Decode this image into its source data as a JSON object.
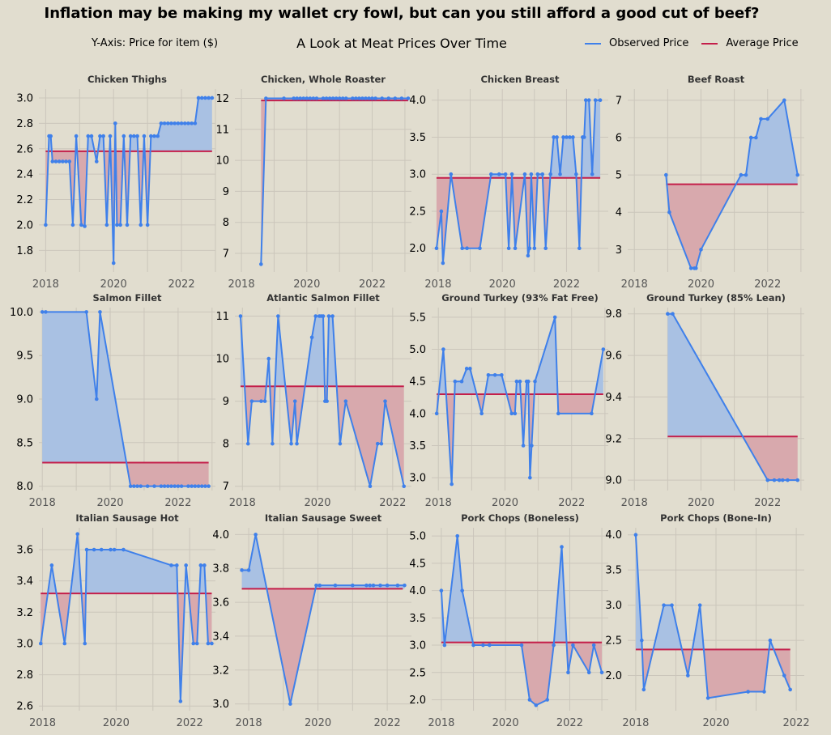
{
  "header": {
    "title": "Inflation may be making my wallet cry fowl, but can you still afford a good cut of beef?",
    "subtitle": "A Look at Meat Prices Over Time",
    "y_axis_note": "Y-Axis: Price for item ($)"
  },
  "legend": {
    "observed": "Observed Price",
    "average": "Average Price"
  },
  "colors": {
    "background": "#e1ddcf",
    "observed_line": "#3f80ea",
    "average_line": "#c41e4a",
    "fill_above": "#a9c1e3",
    "fill_below": "#d8a9ad",
    "grid": "#cbc6bb"
  },
  "chart_data": [
    {
      "type": "line",
      "title": "Chicken Thighs",
      "xlim": [
        2017.8,
        2023.0
      ],
      "ylim": [
        1.63,
        3.07
      ],
      "xticks": [
        2018,
        2020,
        2022
      ],
      "yticks": [
        1.8,
        2.0,
        2.2,
        2.4,
        2.6,
        2.8,
        3.0
      ],
      "average": 2.58,
      "x": [
        2018.0,
        2018.1,
        2018.15,
        2018.2,
        2018.3,
        2018.4,
        2018.5,
        2018.6,
        2018.7,
        2018.8,
        2018.9,
        2019.05,
        2019.15,
        2019.25,
        2019.35,
        2019.5,
        2019.6,
        2019.7,
        2019.8,
        2019.9,
        2020.0,
        2020.05,
        2020.1,
        2020.2,
        2020.3,
        2020.4,
        2020.5,
        2020.6,
        2020.7,
        2020.8,
        2020.9,
        2021.0,
        2021.1,
        2021.2,
        2021.3,
        2021.4,
        2021.5,
        2021.6,
        2021.7,
        2021.8,
        2021.9,
        2022.0,
        2022.1,
        2022.2,
        2022.3,
        2022.4,
        2022.5,
        2022.6,
        2022.7,
        2022.8,
        2022.9
      ],
      "y": [
        2.0,
        2.7,
        2.7,
        2.5,
        2.5,
        2.5,
        2.5,
        2.5,
        2.5,
        2.0,
        2.7,
        2.0,
        1.99,
        2.7,
        2.7,
        2.5,
        2.7,
        2.7,
        2.0,
        2.7,
        1.7,
        2.8,
        2.0,
        2.0,
        2.7,
        2.0,
        2.7,
        2.7,
        2.7,
        2.0,
        2.7,
        2.0,
        2.7,
        2.7,
        2.7,
        2.8,
        2.8,
        2.8,
        2.8,
        2.8,
        2.8,
        2.8,
        2.8,
        2.8,
        2.8,
        2.8,
        3.0,
        3.0,
        3.0,
        3.0,
        3.0
      ]
    },
    {
      "type": "line",
      "title": "Chicken, Whole Roaster",
      "xlim": [
        2017.8,
        2023.2
      ],
      "ylim": [
        6.4,
        12.3
      ],
      "xticks": [
        2018,
        2020,
        2022
      ],
      "yticks": [
        7,
        8,
        9,
        10,
        11,
        12
      ],
      "average": 11.93,
      "x": [
        2018.6,
        2018.75,
        2019.3,
        2019.6,
        2019.7,
        2019.8,
        2019.9,
        2020.0,
        2020.1,
        2020.2,
        2020.3,
        2020.5,
        2020.6,
        2020.7,
        2020.8,
        2020.9,
        2021.0,
        2021.1,
        2021.2,
        2021.4,
        2021.5,
        2021.6,
        2021.7,
        2021.8,
        2021.9,
        2022.0,
        2022.1,
        2022.3,
        2022.5,
        2022.7,
        2022.9,
        2023.1
      ],
      "y": [
        6.65,
        12.0,
        12.0,
        12.0,
        12.0,
        12.0,
        12.0,
        12.0,
        12.0,
        12.0,
        12.0,
        12.0,
        12.0,
        12.0,
        12.0,
        12.0,
        12.0,
        12.0,
        12.0,
        12.0,
        12.0,
        12.0,
        12.0,
        12.0,
        12.0,
        12.0,
        12.0,
        12.0,
        12.0,
        12.0,
        12.0,
        12.0
      ]
    },
    {
      "type": "line",
      "title": "Chicken Breast",
      "xlim": [
        2017.8,
        2023.3
      ],
      "ylim": [
        1.68,
        4.15
      ],
      "xticks": [
        2018,
        2020,
        2022
      ],
      "yticks": [
        2.0,
        2.5,
        3.0,
        3.5,
        4.0
      ],
      "average": 2.95,
      "x": [
        2017.95,
        2018.1,
        2018.15,
        2018.4,
        2018.75,
        2018.9,
        2019.3,
        2019.65,
        2019.9,
        2020.1,
        2020.2,
        2020.3,
        2020.4,
        2020.7,
        2020.8,
        2020.85,
        2020.9,
        2021.0,
        2021.1,
        2021.25,
        2021.35,
        2021.5,
        2021.6,
        2021.7,
        2021.8,
        2021.9,
        2022.0,
        2022.1,
        2022.2,
        2022.3,
        2022.4,
        2022.5,
        2022.55,
        2022.6,
        2022.7,
        2022.8,
        2022.9,
        2023.05
      ],
      "y": [
        2.0,
        2.5,
        1.8,
        3.0,
        2.0,
        2.0,
        2.0,
        3.0,
        3.0,
        3.0,
        2.0,
        3.0,
        2.0,
        3.0,
        1.9,
        2.0,
        3.0,
        2.0,
        3.0,
        3.0,
        2.0,
        3.0,
        3.5,
        3.5,
        3.0,
        3.5,
        3.5,
        3.5,
        3.5,
        3.0,
        2.0,
        3.5,
        3.5,
        4.0,
        4.0,
        3.0,
        4.0,
        4.0
      ]
    },
    {
      "type": "line",
      "title": "Beef Roast",
      "xlim": [
        2017.8,
        2023.1
      ],
      "ylim": [
        2.4,
        7.3
      ],
      "xticks": [
        2018,
        2020,
        2022
      ],
      "yticks": [
        3,
        4,
        5,
        6,
        7
      ],
      "average": 4.75,
      "x": [
        2018.95,
        2019.05,
        2019.7,
        2019.8,
        2019.85,
        2020.0,
        2021.2,
        2021.35,
        2021.5,
        2021.65,
        2021.8,
        2022.0,
        2022.5,
        2022.9
      ],
      "y": [
        5.0,
        4.0,
        2.5,
        2.5,
        2.5,
        3.0,
        5.0,
        5.0,
        6.0,
        6.0,
        6.5,
        6.5,
        7.0,
        5.0
      ]
    },
    {
      "type": "line",
      "title": "Salmon Fillet",
      "xlim": [
        2017.9,
        2023.1
      ],
      "ylim": [
        7.95,
        10.05
      ],
      "xticks": [
        2018,
        2020,
        2022
      ],
      "yticks": [
        8.0,
        8.5,
        9.0,
        9.5,
        10.0
      ],
      "average": 8.27,
      "x": [
        2018.0,
        2018.1,
        2019.3,
        2019.6,
        2019.7,
        2020.6,
        2020.7,
        2020.8,
        2020.9,
        2021.1,
        2021.3,
        2021.5,
        2021.6,
        2021.7,
        2021.8,
        2021.9,
        2022.0,
        2022.1,
        2022.3,
        2022.4,
        2022.5,
        2022.6,
        2022.7,
        2022.8,
        2022.9
      ],
      "y": [
        10.0,
        10.0,
        10.0,
        9.0,
        10.0,
        8.0,
        8.0,
        8.0,
        8.0,
        8.0,
        8.0,
        8.0,
        8.0,
        8.0,
        8.0,
        8.0,
        8.0,
        8.0,
        8.0,
        8.0,
        8.0,
        8.0,
        8.0,
        8.0,
        8.0
      ]
    },
    {
      "type": "line",
      "title": "Atlantic Salmon Fillet",
      "xlim": [
        2017.8,
        2022.5
      ],
      "ylim": [
        6.9,
        11.2
      ],
      "xticks": [
        2018,
        2020,
        2022
      ],
      "yticks": [
        7,
        8,
        9,
        10,
        11
      ],
      "average": 9.35,
      "x": [
        2017.95,
        2018.15,
        2018.25,
        2018.5,
        2018.6,
        2018.7,
        2018.8,
        2018.95,
        2019.3,
        2019.4,
        2019.45,
        2019.85,
        2019.95,
        2020.05,
        2020.1,
        2020.15,
        2020.2,
        2020.25,
        2020.3,
        2020.4,
        2020.6,
        2020.75,
        2021.4,
        2021.6,
        2021.7,
        2021.8,
        2022.3
      ],
      "y": [
        11.0,
        8.0,
        9.0,
        9.0,
        9.0,
        10.0,
        8.0,
        11.0,
        8.0,
        9.0,
        8.0,
        10.5,
        11.0,
        11.0,
        11.0,
        11.0,
        9.0,
        9.0,
        11.0,
        11.0,
        8.0,
        9.0,
        7.0,
        8.0,
        8.0,
        9.0,
        7.0
      ]
    },
    {
      "type": "line",
      "title": "Ground Turkey (93% Fat Free)",
      "xlim": [
        2017.8,
        2023.1
      ],
      "ylim": [
        2.8,
        5.65
      ],
      "xticks": [
        2018,
        2020,
        2022
      ],
      "yticks": [
        3.0,
        3.5,
        4.0,
        4.5,
        5.0,
        5.5
      ],
      "average": 4.3,
      "x": [
        2017.95,
        2018.15,
        2018.4,
        2018.5,
        2018.7,
        2018.85,
        2018.95,
        2019.3,
        2019.5,
        2019.7,
        2019.9,
        2020.2,
        2020.3,
        2020.35,
        2020.45,
        2020.55,
        2020.65,
        2020.7,
        2020.75,
        2020.8,
        2020.9,
        2021.5,
        2021.6,
        2022.6,
        2022.95
      ],
      "y": [
        4.0,
        5.0,
        2.9,
        4.5,
        4.5,
        4.7,
        4.7,
        4.0,
        4.6,
        4.6,
        4.6,
        4.0,
        4.0,
        4.5,
        4.5,
        3.5,
        4.5,
        4.5,
        3.0,
        3.5,
        4.5,
        5.5,
        4.0,
        4.0,
        5.0
      ]
    },
    {
      "type": "line",
      "title": "Ground Turkey (85% Lean)",
      "xlim": [
        2017.8,
        2023.1
      ],
      "ylim": [
        8.95,
        9.83
      ],
      "xticks": [
        2018,
        2020,
        2022
      ],
      "yticks": [
        9.0,
        9.2,
        9.4,
        9.6,
        9.8
      ],
      "average": 9.21,
      "x": [
        2019.0,
        2019.15,
        2022.0,
        2022.2,
        2022.35,
        2022.45,
        2022.6,
        2022.9
      ],
      "y": [
        9.8,
        9.8,
        9.0,
        9.0,
        9.0,
        9.0,
        9.0,
        9.0
      ]
    },
    {
      "type": "line",
      "title": "Italian Sausage Hot",
      "xlim": [
        2017.9,
        2022.7
      ],
      "ylim": [
        2.57,
        3.74
      ],
      "xticks": [
        2018,
        2020,
        2022
      ],
      "yticks": [
        2.6,
        2.8,
        3.0,
        3.2,
        3.4,
        3.6
      ],
      "average": 3.32,
      "x": [
        2017.95,
        2018.25,
        2018.6,
        2018.95,
        2019.15,
        2019.2,
        2019.4,
        2019.6,
        2019.85,
        2019.95,
        2020.2,
        2021.5,
        2021.65,
        2021.75,
        2021.9,
        2022.1,
        2022.2,
        2022.3,
        2022.4,
        2022.5,
        2022.6
      ],
      "y": [
        3.0,
        3.5,
        3.0,
        3.7,
        3.0,
        3.6,
        3.6,
        3.6,
        3.6,
        3.6,
        3.6,
        3.5,
        3.5,
        2.63,
        3.5,
        3.0,
        3.0,
        3.5,
        3.5,
        3.0,
        3.0
      ]
    },
    {
      "type": "line",
      "title": "Italian Sausage Sweet",
      "xlim": [
        2017.6,
        2022.7
      ],
      "ylim": [
        2.96,
        4.04
      ],
      "xticks": [
        2018,
        2020,
        2022
      ],
      "yticks": [
        3.0,
        3.2,
        3.4,
        3.6,
        3.8,
        4.0
      ],
      "average": 3.68,
      "x": [
        2017.8,
        2018.0,
        2018.2,
        2019.2,
        2019.95,
        2020.05,
        2020.5,
        2021.0,
        2021.4,
        2021.5,
        2021.6,
        2021.8,
        2022.0,
        2022.3,
        2022.5
      ],
      "y": [
        3.79,
        3.79,
        4.0,
        3.0,
        3.7,
        3.7,
        3.7,
        3.7,
        3.7,
        3.7,
        3.7,
        3.7,
        3.7,
        3.7,
        3.7
      ],
      "plot_average_to": 2022.45
    },
    {
      "type": "line",
      "title": "Pork Chops (Boneless)",
      "xlim": [
        2017.7,
        2023.2
      ],
      "ylim": [
        1.8,
        5.15
      ],
      "xticks": [
        2018,
        2020,
        2022
      ],
      "yticks": [
        2.0,
        2.5,
        3.0,
        3.5,
        4.0,
        4.5,
        5.0
      ],
      "average": 3.05,
      "x": [
        2018.0,
        2018.1,
        2018.5,
        2018.65,
        2019.0,
        2019.3,
        2019.5,
        2020.5,
        2020.75,
        2020.95,
        2021.3,
        2021.5,
        2021.75,
        2021.95,
        2022.1,
        2022.6,
        2022.75,
        2023.0
      ],
      "y": [
        4.0,
        3.0,
        5.0,
        4.0,
        3.0,
        3.0,
        3.0,
        3.0,
        2.0,
        1.9,
        2.0,
        3.0,
        4.8,
        2.5,
        3.0,
        2.5,
        3.0,
        2.5
      ]
    },
    {
      "type": "line",
      "title": "Pork Chops (Bone-In)",
      "xlim": [
        2017.8,
        2022.2
      ],
      "ylim": [
        1.5,
        4.1
      ],
      "xticks": [
        2018,
        2020,
        2022
      ],
      "yticks": [
        2.0,
        2.5,
        3.0,
        3.5,
        4.0
      ],
      "average": 2.37,
      "x": [
        2018.0,
        2018.15,
        2018.2,
        2018.7,
        2018.9,
        2019.3,
        2019.6,
        2019.8,
        2020.8,
        2021.2,
        2021.35,
        2021.7,
        2021.85
      ],
      "y": [
        4.0,
        2.5,
        1.8,
        3.0,
        3.0,
        2.0,
        3.0,
        1.68,
        1.77,
        1.77,
        2.5,
        2.0,
        1.8
      ]
    }
  ]
}
